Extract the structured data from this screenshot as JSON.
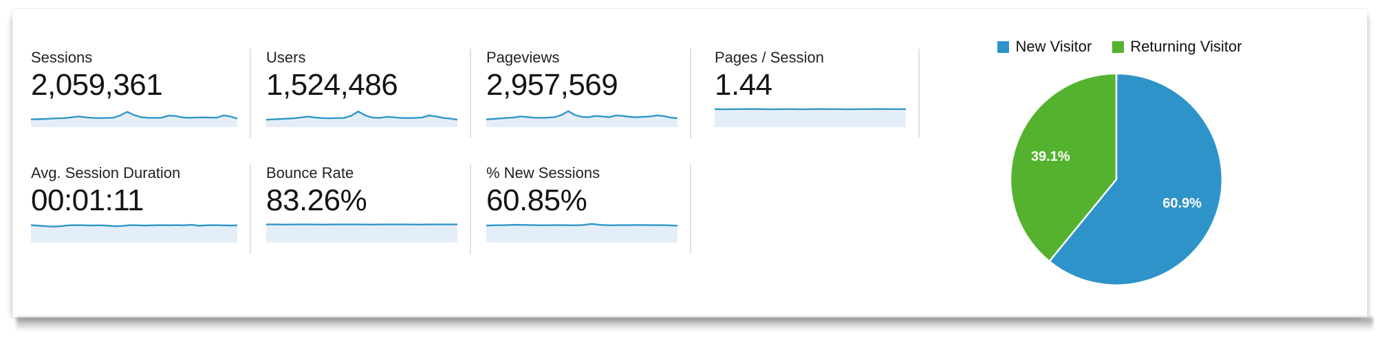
{
  "metrics": {
    "rows": [
      [
        {
          "label": "Sessions",
          "value": "2,059,361"
        },
        {
          "label": "Users",
          "value": "1,524,486"
        },
        {
          "label": "Pageviews",
          "value": "2,957,569"
        },
        {
          "label": "Pages / Session",
          "value": "1.44"
        }
      ],
      [
        {
          "label": "Avg. Session Duration",
          "value": "00:01:11"
        },
        {
          "label": "Bounce Rate",
          "value": "83.26%"
        },
        {
          "label": "% New Sessions",
          "value": "60.85%"
        }
      ]
    ],
    "spark_line_color": "#2f96c8",
    "spark_fill_color": "#e4eef8"
  },
  "colors": {
    "new_visitor_blue": "#2e93c9",
    "returning_visitor_green": "#55b22e",
    "divider_gray": "#e0e0e0"
  },
  "chart_data": [
    {
      "type": "pie",
      "labels": [
        "New Visitor",
        "Returning Visitor"
      ],
      "values": [
        60.9,
        39.1
      ],
      "data_labels": [
        "60.9%",
        "39.1%"
      ],
      "colors": [
        "#2e93c9",
        "#55b22e"
      ],
      "legend_position": "top",
      "start_angle_deg": 0,
      "direction": "clockwise"
    },
    {
      "type": "line",
      "subtype": "sparklines",
      "description": "Scorecard trend sparklines; values are normalized heights 0-1 (no axes or tick labels shown in UI)",
      "series": [
        {
          "name": "Sessions",
          "values": [
            0.36,
            0.37,
            0.38,
            0.4,
            0.42,
            0.43,
            0.48,
            0.52,
            0.47,
            0.44,
            0.43,
            0.44,
            0.45,
            0.58,
            0.78,
            0.6,
            0.48,
            0.45,
            0.44,
            0.45,
            0.57,
            0.55,
            0.47,
            0.45,
            0.46,
            0.47,
            0.46,
            0.45,
            0.58,
            0.52,
            0.4
          ]
        },
        {
          "name": "Users",
          "values": [
            0.34,
            0.36,
            0.38,
            0.4,
            0.42,
            0.47,
            0.51,
            0.46,
            0.43,
            0.42,
            0.43,
            0.44,
            0.56,
            0.8,
            0.58,
            0.46,
            0.44,
            0.5,
            0.48,
            0.44,
            0.43,
            0.44,
            0.46,
            0.58,
            0.52,
            0.44,
            0.4,
            0.34
          ]
        },
        {
          "name": "Pageviews",
          "values": [
            0.36,
            0.38,
            0.41,
            0.44,
            0.46,
            0.52,
            0.49,
            0.45,
            0.44,
            0.46,
            0.48,
            0.6,
            0.82,
            0.6,
            0.5,
            0.48,
            0.55,
            0.52,
            0.48,
            0.58,
            0.55,
            0.5,
            0.48,
            0.5,
            0.52,
            0.58,
            0.54,
            0.46,
            0.42
          ]
        },
        {
          "name": "Pages / Session",
          "values": [
            0.93,
            0.92,
            0.93,
            0.93,
            0.94,
            0.93,
            0.92,
            0.93,
            0.93,
            0.92,
            0.93,
            0.94,
            0.93,
            0.93,
            0.92,
            0.93,
            0.93,
            0.94,
            0.93,
            0.93,
            0.93
          ]
        },
        {
          "name": "Avg. Session Duration",
          "values": [
            0.9,
            0.87,
            0.84,
            0.82,
            0.85,
            0.89,
            0.9,
            0.89,
            0.88,
            0.89,
            0.87,
            0.84,
            0.86,
            0.9,
            0.89,
            0.88,
            0.89,
            0.9,
            0.89,
            0.9,
            0.89,
            0.92,
            0.87,
            0.89,
            0.9,
            0.89,
            0.88,
            0.89
          ]
        },
        {
          "name": "Bounce Rate",
          "values": [
            0.94,
            0.94,
            0.93,
            0.94,
            0.94,
            0.94,
            0.93,
            0.94,
            0.94,
            0.94,
            0.94,
            0.93,
            0.94,
            0.94,
            0.94,
            0.94,
            0.93,
            0.94,
            0.94,
            0.94,
            0.94
          ]
        },
        {
          "name": "% New Sessions",
          "values": [
            0.88,
            0.89,
            0.9,
            0.92,
            0.91,
            0.9,
            0.89,
            0.9,
            0.9,
            0.89,
            0.9,
            0.97,
            0.91,
            0.89,
            0.9,
            0.9,
            0.91,
            0.9,
            0.9,
            0.89,
            0.87
          ]
        }
      ]
    }
  ]
}
